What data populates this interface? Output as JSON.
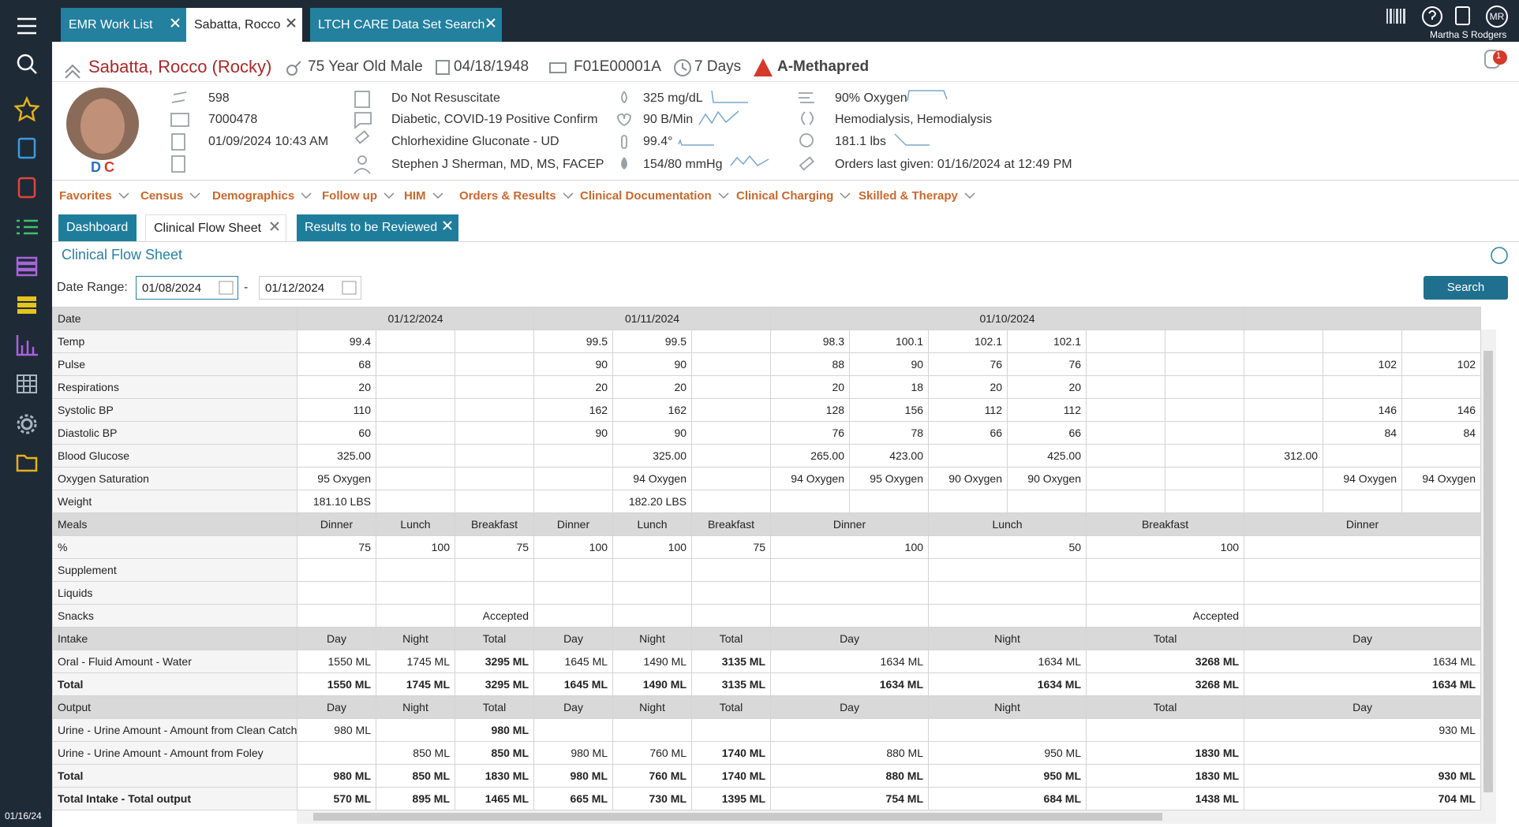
{
  "top_bar": {
    "tabs": [
      "EMR Work List",
      "Sabatta, Rocco",
      "LTCH CARE Data Set Search"
    ],
    "user_initials": "MR",
    "user_name": "Martha S Rodgers"
  },
  "sidebar": {
    "date": "01/16/24"
  },
  "patient": {
    "name": "Sabatta, Rocco (Rocky)",
    "age_sex": "75 Year Old Male",
    "dob": "04/18/1948",
    "id": "F01E00001A",
    "stay": "7 Days",
    "allergy": "A-Methapred",
    "notifications": "1",
    "photo_letters": [
      "D",
      "C"
    ],
    "info": [
      [
        "598",
        "7000478",
        "01/09/2024 10:43 AM"
      ],
      [
        "Do Not Resuscitate",
        "Diabetic, COVID-19 Positive Confirm",
        "Chlorhexidine Gluconate - UD",
        "Stephen J Sherman, MD, MS, FACEP"
      ],
      [
        "325 mg/dL",
        "90 B/Min",
        "99.4°",
        "154/80 mmHg"
      ],
      [
        "90% Oxygen",
        "Hemodialysis, Hemodialysis",
        "181.1 lbs",
        "Orders last given: 01/16/2024 at 12:49 PM"
      ]
    ]
  },
  "menu": [
    "Favorites",
    "Census",
    "Demographics",
    "Follow up",
    "HIM",
    "Orders & Results",
    "Clinical Documentation",
    "Clinical Charging",
    "Skilled & Therapy"
  ],
  "sub_tabs": [
    "Dashboard",
    "Clinical Flow Sheet",
    "Results to be Reviewed"
  ],
  "flow_sheet": {
    "title": "Clinical Flow Sheet",
    "date_range_label": "Date Range:",
    "from": "01/08/2024",
    "separator": "-",
    "to": "01/12/2024",
    "search": "Search",
    "table": {
      "date_header": {
        "label": "Date",
        "dates": [
          "01/12/2024",
          "01/11/2024",
          "01/10/2024",
          null
        ]
      },
      "vitals": [
        {
          "label": "Temp",
          "values": [
            "99.4",
            null,
            null,
            "99.5",
            "99.5",
            null,
            "98.3",
            "100.1",
            "102.1",
            "102.1",
            null,
            null,
            null,
            null,
            null
          ]
        },
        {
          "label": "Pulse",
          "values": [
            "68",
            null,
            null,
            "90",
            "90",
            null,
            "88",
            "90",
            "76",
            "76",
            null,
            null,
            null,
            "102",
            "102"
          ]
        },
        {
          "label": "Respirations",
          "values": [
            "20",
            null,
            null,
            "20",
            "20",
            null,
            "20",
            "18",
            "20",
            "20",
            null,
            null,
            null,
            null,
            null
          ]
        },
        {
          "label": "Systolic BP",
          "values": [
            "110",
            null,
            null,
            "162",
            "162",
            null,
            "128",
            "156",
            "112",
            "112",
            null,
            null,
            null,
            "146",
            "146"
          ]
        },
        {
          "label": "Diastolic BP",
          "values": [
            "60",
            null,
            null,
            "90",
            "90",
            null,
            "76",
            "78",
            "66",
            "66",
            null,
            null,
            null,
            "84",
            "84"
          ]
        },
        {
          "label": "Blood Glucose",
          "values": [
            "325.00",
            null,
            null,
            null,
            "325.00",
            null,
            "265.00",
            "423.00",
            null,
            "425.00",
            null,
            null,
            "312.00",
            null,
            null
          ]
        },
        {
          "label": "Oxygen Saturation",
          "values": [
            "95 Oxygen",
            null,
            null,
            null,
            "94 Oxygen",
            null,
            "94 Oxygen",
            "95 Oxygen",
            "90 Oxygen",
            "90 Oxygen",
            null,
            null,
            null,
            "94 Oxygen",
            "94 Oxygen"
          ]
        },
        {
          "label": "Weight",
          "values": [
            "181.10 LBS",
            null,
            null,
            null,
            "182.20 LBS",
            null,
            null,
            null,
            null,
            null,
            null,
            null,
            null,
            null,
            null
          ]
        }
      ],
      "meals": {
        "label": "Meals",
        "columns": [
          "Dinner",
          "Lunch",
          "Breakfast",
          "Dinner",
          "Lunch",
          "Breakfast",
          "Dinner",
          "Lunch",
          "Breakfast",
          "Dinner"
        ],
        "rows": [
          {
            "label": "%",
            "values": [
              "75",
              "100",
              "75",
              "100",
              "100",
              "75",
              "100",
              "50",
              "100",
              null
            ]
          },
          {
            "label": "Supplement",
            "values": [
              null,
              null,
              null,
              null,
              null,
              null,
              null,
              null,
              null,
              null
            ]
          },
          {
            "label": "Liquids",
            "values": [
              null,
              null,
              null,
              null,
              null,
              null,
              null,
              null,
              null,
              null
            ]
          },
          {
            "label": "Snacks",
            "values": [
              null,
              null,
              "Accepted",
              null,
              null,
              null,
              null,
              null,
              "Accepted",
              null
            ]
          }
        ]
      },
      "intake": {
        "label": "Intake",
        "columns": [
          "Day",
          "Night",
          "Total",
          "Day",
          "Night",
          "Total",
          "Day",
          "Night",
          "Total",
          "Day"
        ],
        "rows": [
          {
            "label": "Oral - Fluid Amount - Water",
            "values": [
              "1550 ML",
              "1745 ML",
              "3295 ML",
              "1645 ML",
              "1490 ML",
              "3135 ML",
              "1634 ML",
              "1634 ML",
              "3268 ML",
              "1634 ML"
            ]
          },
          {
            "label": "Total",
            "values": [
              "1550 ML",
              "1745 ML",
              "3295 ML",
              "1645 ML",
              "1490 ML",
              "3135 ML",
              "1634 ML",
              "1634 ML",
              "3268 ML",
              "1634 ML"
            ]
          }
        ]
      },
      "output": {
        "label": "Output",
        "columns": [
          "Day",
          "Night",
          "Total",
          "Day",
          "Night",
          "Total",
          "Day",
          "Night",
          "Total",
          "Day"
        ],
        "rows": [
          {
            "label": "Urine - Urine Amount - Amount from Clean Catch",
            "values": [
              "980 ML",
              null,
              "980 ML",
              null,
              null,
              null,
              null,
              null,
              null,
              "930 ML"
            ]
          },
          {
            "label": "Urine - Urine Amount - Amount from Foley",
            "values": [
              null,
              "850 ML",
              "850 ML",
              "980 ML",
              "760 ML",
              "1740 ML",
              "880 ML",
              "950 ML",
              "1830 ML",
              null
            ]
          },
          {
            "label": "Total",
            "values": [
              "980 ML",
              "850 ML",
              "1830 ML",
              "980 ML",
              "760 ML",
              "1740 ML",
              "880 ML",
              "950 ML",
              "1830 ML",
              "930 ML"
            ]
          },
          {
            "label": "Total Intake - Total output",
            "values": [
              "570 ML",
              "895 ML",
              "1465 ML",
              "665 ML",
              "730 ML",
              "1395 ML",
              "754 ML",
              "684 ML",
              "1438 ML",
              "704 ML"
            ]
          }
        ]
      }
    }
  }
}
